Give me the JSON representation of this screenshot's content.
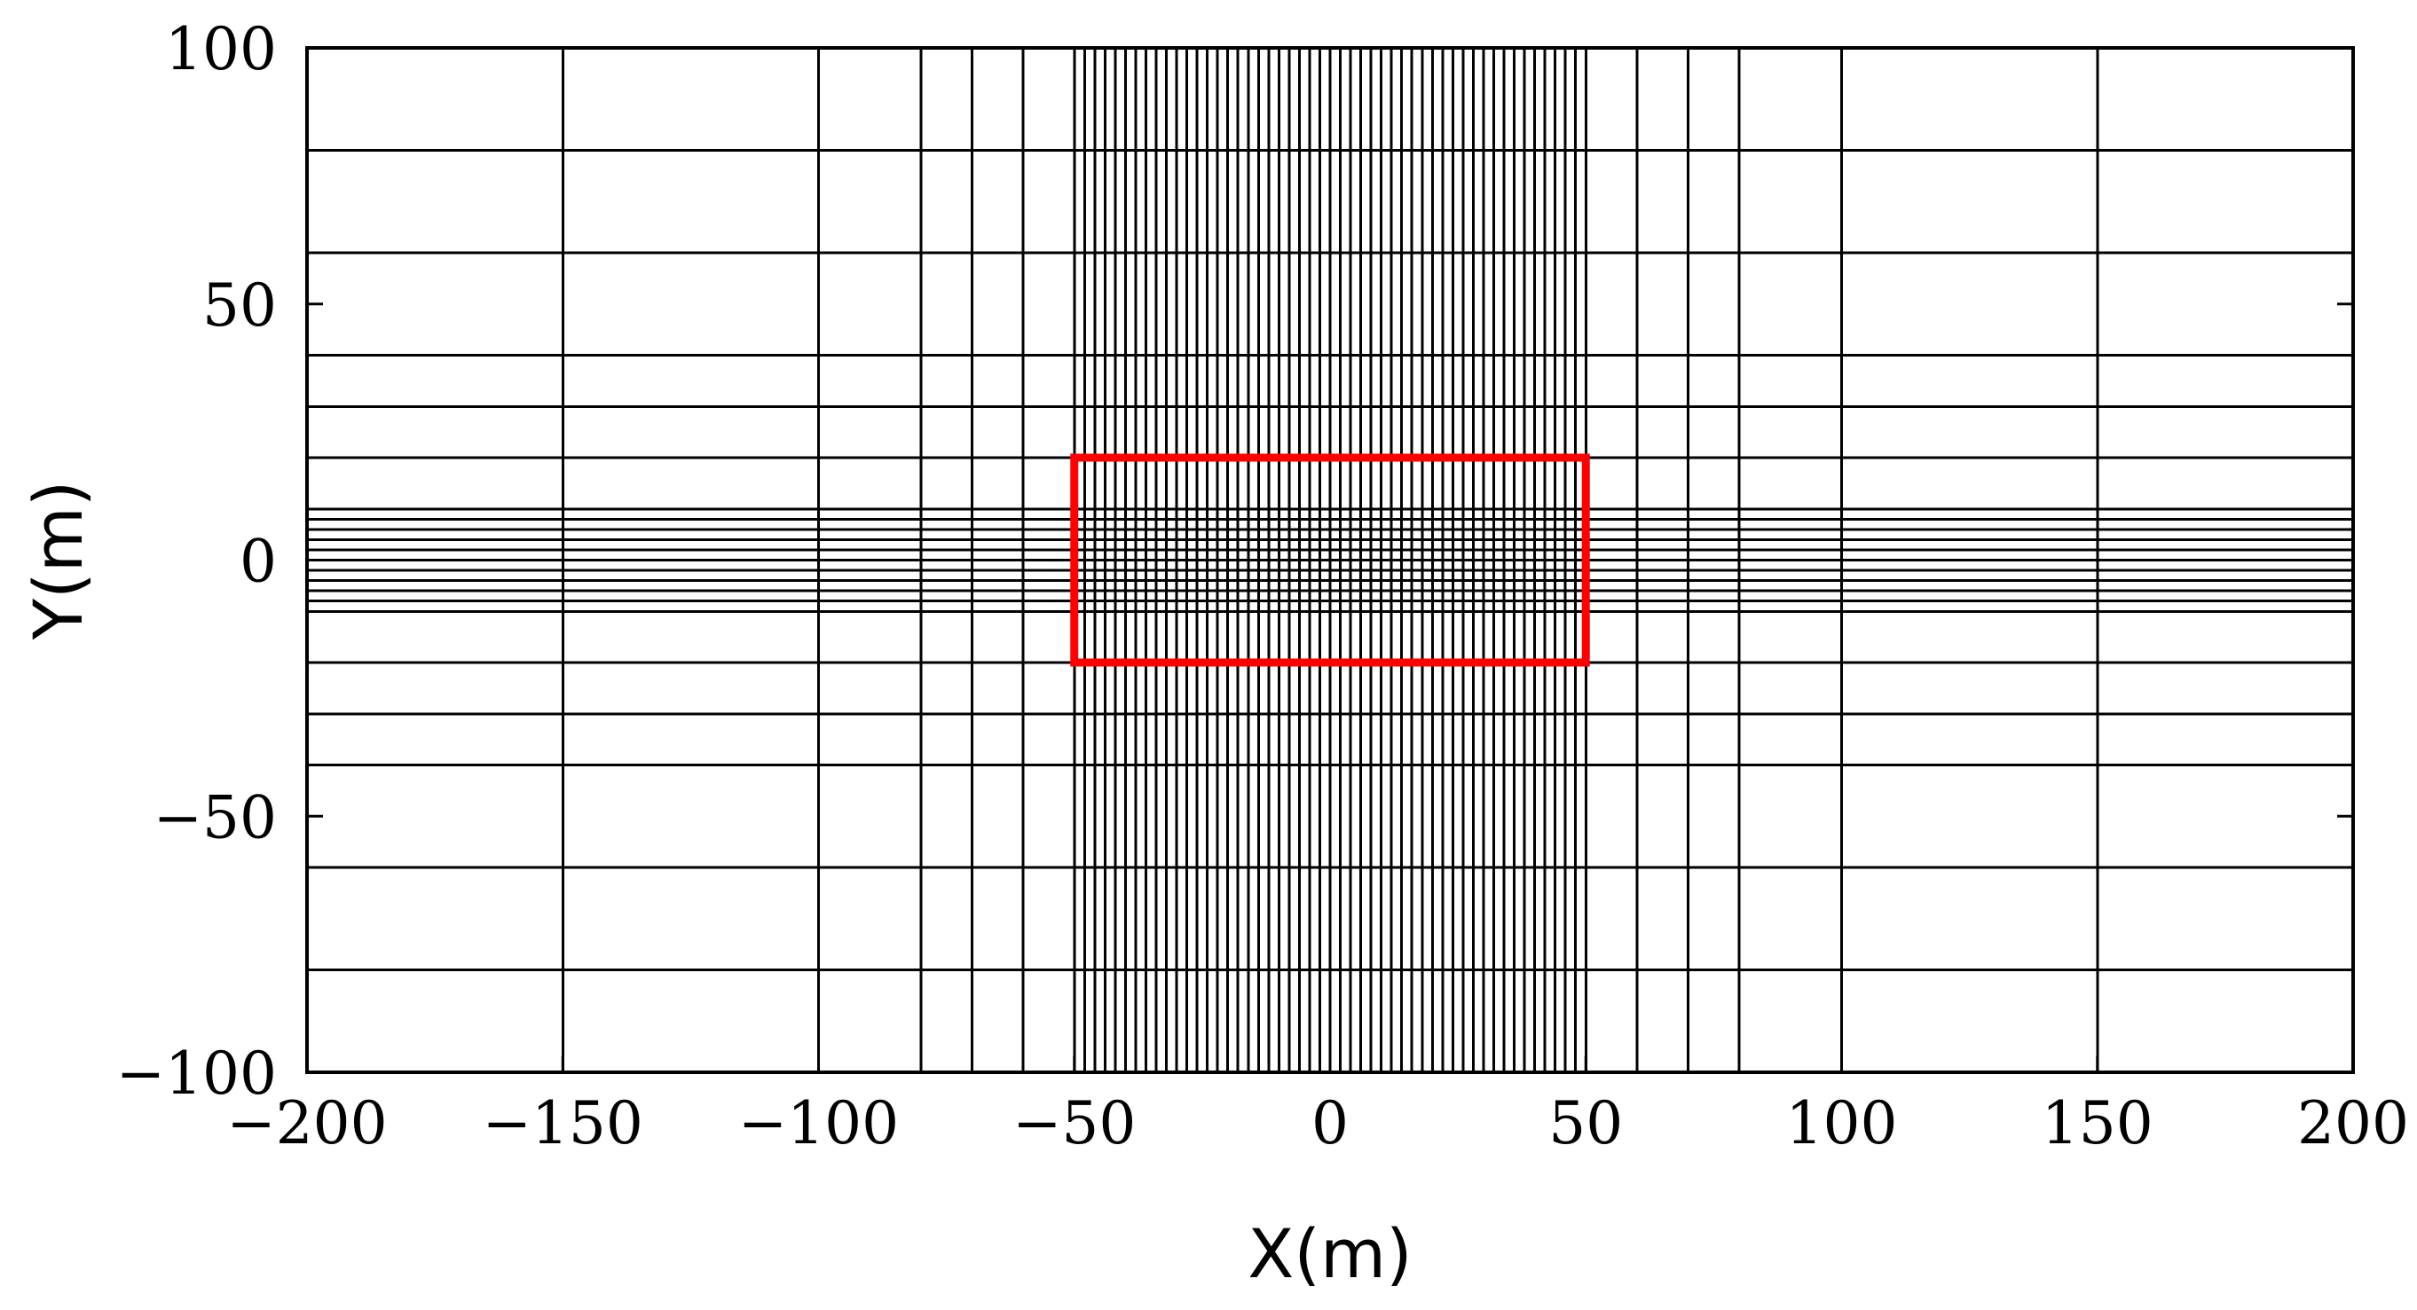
{
  "chart_data": {
    "type": "mesh-grid",
    "xlabel": "X(m)",
    "ylabel": "Y(m)",
    "xlim": [
      -200,
      200
    ],
    "ylim": [
      -100,
      100
    ],
    "xticks": [
      -200,
      -150,
      -100,
      -50,
      0,
      50,
      100,
      150,
      200
    ],
    "yticks": [
      -100,
      -50,
      0,
      50,
      100
    ],
    "xtick_labels": [
      "−200",
      "−150",
      "−100",
      "−50",
      "0",
      "50",
      "100",
      "150",
      "200"
    ],
    "ytick_labels": [
      "−100",
      "−50",
      "0",
      "50",
      "100"
    ],
    "mesh": {
      "x_lines_coarse": [
        -200,
        -150,
        -100,
        -80,
        -70,
        -60,
        60,
        70,
        80,
        100,
        150,
        200
      ],
      "x_fine_region": [
        -50,
        50
      ],
      "x_fine_spacing": 2,
      "y_lines_coarse": [
        -100,
        -80,
        -60,
        -40,
        -30,
        -20,
        20,
        30,
        40,
        60,
        80,
        100
      ],
      "y_fine_region": [
        -10,
        10
      ],
      "y_fine_spacing": 2
    },
    "highlight_box": {
      "x": [
        -50,
        50
      ],
      "y": [
        -20,
        20
      ],
      "color": "#ff0000"
    },
    "colors": {
      "grid": "#000000",
      "highlight": "#ff0000"
    }
  }
}
